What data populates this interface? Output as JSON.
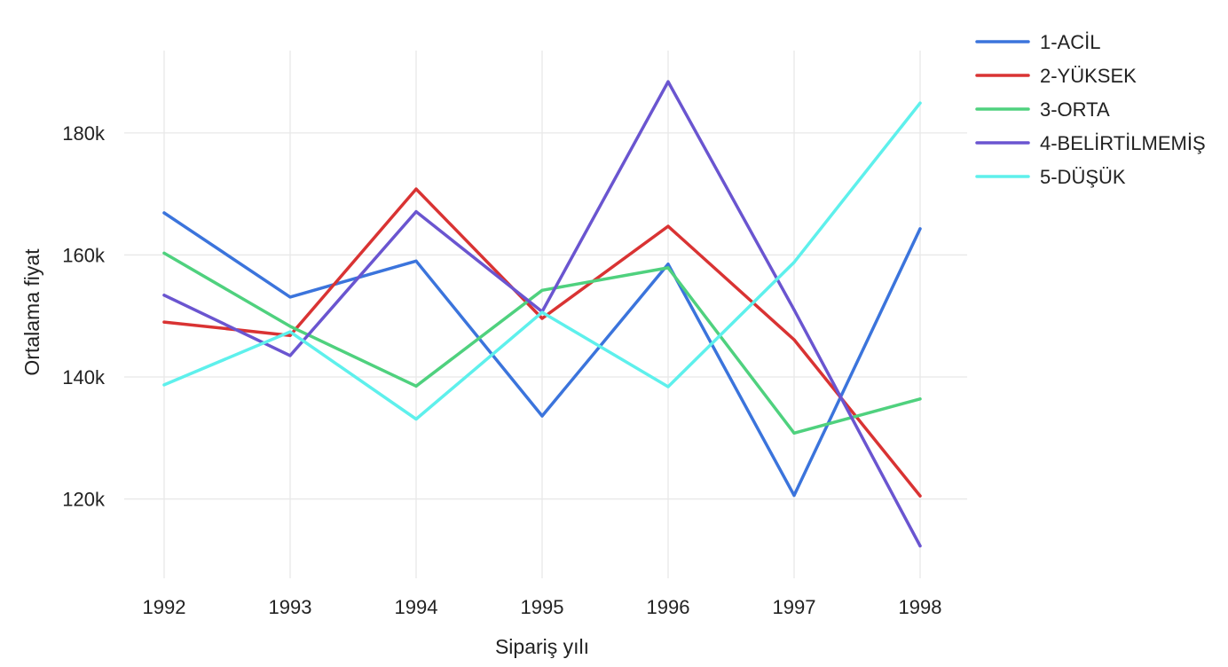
{
  "chart_data": {
    "type": "line",
    "title": "",
    "xlabel": "Sipariş yılı",
    "ylabel": "Ortalama fiyat",
    "x": [
      1992,
      1993,
      1994,
      1995,
      1996,
      1997,
      1998
    ],
    "x_tick_labels": [
      "1992",
      "1993",
      "1994",
      "1995",
      "1996",
      "1997",
      "1998"
    ],
    "y_ticks": [
      120000,
      140000,
      160000,
      180000
    ],
    "y_tick_labels": [
      "120k",
      "140k",
      "160k",
      "180k"
    ],
    "ylim": [
      107000,
      193500
    ],
    "grid": true,
    "legend_position": "top-right",
    "series": [
      {
        "name": "1-ACİL",
        "color": "#3b74dc",
        "values": [
          166900,
          153100,
          159000,
          133600,
          158500,
          120600,
          164300
        ]
      },
      {
        "name": "2-YÜKSEK",
        "color": "#d93333",
        "values": [
          149000,
          146800,
          170800,
          149600,
          164700,
          146100,
          120500
        ]
      },
      {
        "name": "3-ORTA",
        "color": "#4fd17e",
        "values": [
          160300,
          148300,
          138500,
          154200,
          157900,
          130800,
          136400
        ]
      },
      {
        "name": "4-BELİRTİLMEMİŞ",
        "color": "#6a55d0",
        "values": [
          153400,
          143500,
          167100,
          150700,
          188400,
          151000,
          112300
        ]
      },
      {
        "name": "5-DÜŞÜK",
        "color": "#5ef0ec",
        "values": [
          138700,
          147400,
          133100,
          150600,
          138400,
          158800,
          184900
        ]
      }
    ]
  }
}
